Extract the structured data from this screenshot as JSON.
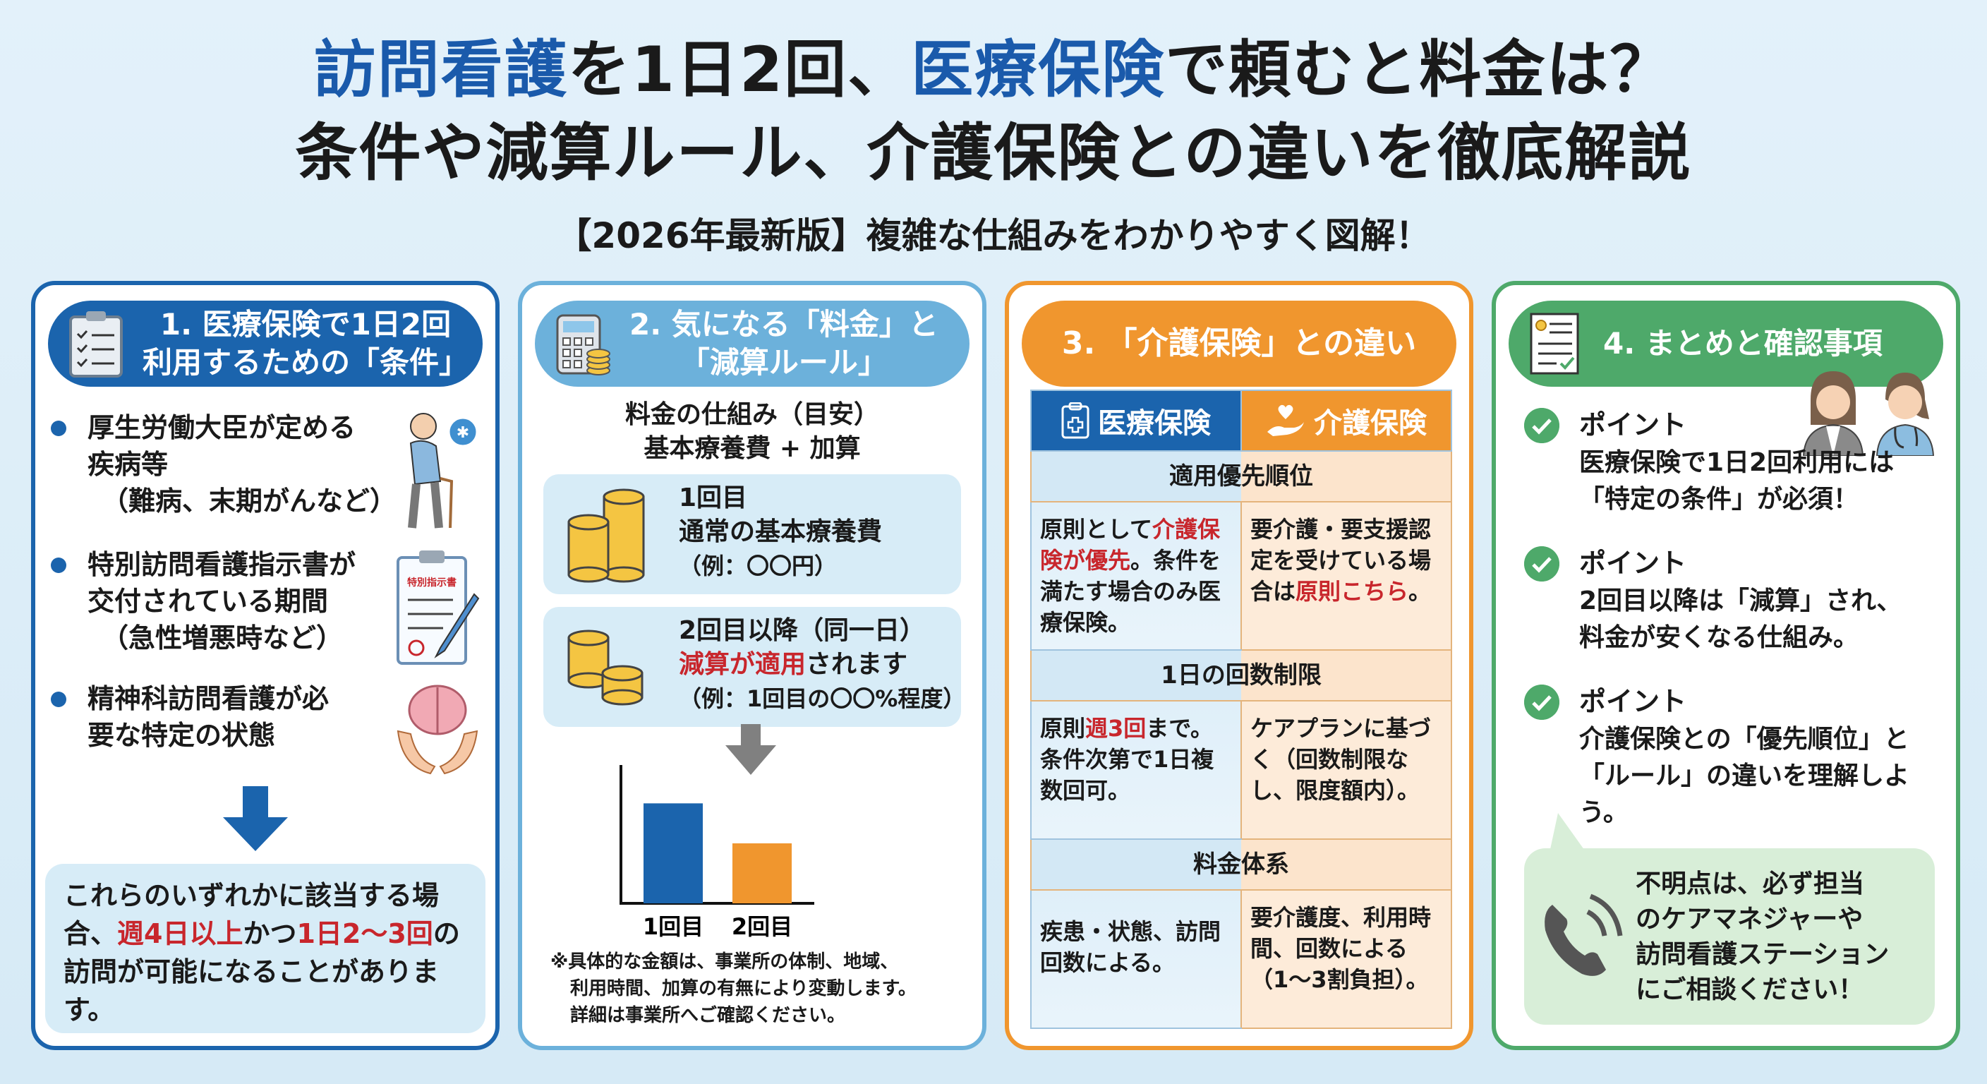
{
  "header": {
    "title_line1": [
      {
        "text": "訪問看護",
        "color": "blue"
      },
      {
        "text": "を1日2回、",
        "color": "black"
      },
      {
        "text": "医療保険",
        "color": "blue"
      },
      {
        "text": "で頼むと料金は？",
        "color": "black"
      }
    ],
    "title_line2": "条件や減算ルール、介護保険との違いを徹底解説",
    "subtitle": "【2026年最新版】複雑な仕組みをわかりやすく図解！"
  },
  "colors": {
    "medical_blue": "#1b64ad",
    "light_blue": "#6cb1db",
    "care_orange": "#f0962e",
    "summary_green": "#4ea96a",
    "accent_red": "#c8262c"
  },
  "panel1": {
    "title_line1": "1. 医療保険で1日2回",
    "title_line2": "利用するための「条件」",
    "icon": "clipboard-checklist-icon",
    "conditions": [
      {
        "lines": [
          "厚生労働大臣が定める",
          "疾病等"
        ],
        "sub": "（難病、末期がんなど）",
        "icon": "elderly-person-cane-icon"
      },
      {
        "lines": [
          "特別訪問看護指示書が",
          "交付されている期間"
        ],
        "sub": "（急性増悪時など）",
        "icon": "special-instruction-document-icon",
        "doc_label": "特別指示書"
      },
      {
        "lines": [
          "精神科訪問看護が必",
          "要な特定の状態"
        ],
        "sub": "",
        "icon": "brain-in-hands-icon"
      }
    ],
    "result": {
      "p1": "これらのいずれかに該当する場合、",
      "r1": "週4日以上",
      "p2": "かつ",
      "r2": "1日2〜3回",
      "p3": "の訪問が可能になることがあります。"
    }
  },
  "panel2": {
    "title_line1": "2. 気になる「料金」と",
    "title_line2": "「減算ルール」",
    "icon": "calculator-coins-icon",
    "fee_heading_line1": "料金の仕組み（目安）",
    "fee_heading_line2": "基本療養費 + 加算",
    "first_visit": {
      "label": "1回目",
      "desc": "通常の基本療養費",
      "example": "（例：〇〇円）"
    },
    "second_visit": {
      "label": "2回目以降（同一日）",
      "red": "減算が適用",
      "rest": "されます",
      "example": "（例：1回目の〇〇%程度）"
    },
    "note_lines": [
      "※具体的な金額は、事業所の体制、地域、",
      "利用時間、加算の有無により変動します。",
      "詳細は事業所へご確認ください。"
    ]
  },
  "chart_data": {
    "type": "bar",
    "title": "",
    "categories": [
      "1回目",
      "2回目"
    ],
    "values": [
      100,
      60
    ],
    "colors": [
      "#1b64ad",
      "#f0962e"
    ],
    "xlabel": "",
    "ylabel": "",
    "ylim": [
      0,
      120
    ],
    "grid": false,
    "note": "Conceptual comparison, no axis ticks shown; 2nd visit bar approx. 60% height of 1st"
  },
  "panel3": {
    "title": "3. 「介護保険」との違い",
    "col_medical": "医療保険",
    "col_care": "介護保険",
    "col_medical_icon": "medical-clipboard-cross-icon",
    "col_care_icon": "heart-in-hand-icon",
    "sections": [
      {
        "heading": "適用優先順位",
        "medical": [
          {
            "t": "原則として",
            "c": ""
          },
          {
            "t": "介護保険が優先",
            "c": "red"
          },
          {
            "t": "。条件を満たす場合のみ医療保険。",
            "c": ""
          }
        ],
        "care": [
          {
            "t": "要介護・要支援認定を受けている場合は",
            "c": ""
          },
          {
            "t": "原則こちら",
            "c": "red"
          },
          {
            "t": "。",
            "c": ""
          }
        ]
      },
      {
        "heading": "1日の回数制限",
        "medical": [
          {
            "t": "原則",
            "c": ""
          },
          {
            "t": "週3回",
            "c": "red"
          },
          {
            "t": "まで。条件次第で1日複数回可。",
            "c": ""
          }
        ],
        "care": [
          {
            "t": "ケアプランに基づく（回数制限なし、限度額内）。",
            "c": ""
          }
        ]
      },
      {
        "heading": "料金体系",
        "medical": [
          {
            "t": "疾患・状態、訪問回数による。",
            "c": ""
          }
        ],
        "care": [
          {
            "t": "要介護度、利用時間、回数による（1〜3割負担）。",
            "c": ""
          }
        ]
      }
    ]
  },
  "panel4": {
    "title": "4. まとめと確認事項",
    "icon": "certificate-check-icon",
    "points": [
      {
        "label": "ポイント",
        "lines": [
          "医療保険で1日2回利用には",
          "「特定の条件」が必須！"
        ]
      },
      {
        "label": "ポイント",
        "lines": [
          "2回目以降は「減算」され、",
          "料金が安くなる仕組み。"
        ]
      },
      {
        "label": "ポイント",
        "lines": [
          "介護保険との「優先順位」と",
          "「ルール」の違いを理解しよう。"
        ]
      }
    ],
    "contact_lines": [
      "不明点は、必ず担当",
      "のケアマネジャーや",
      "訪問看護ステーション",
      "にご相談ください！"
    ]
  }
}
